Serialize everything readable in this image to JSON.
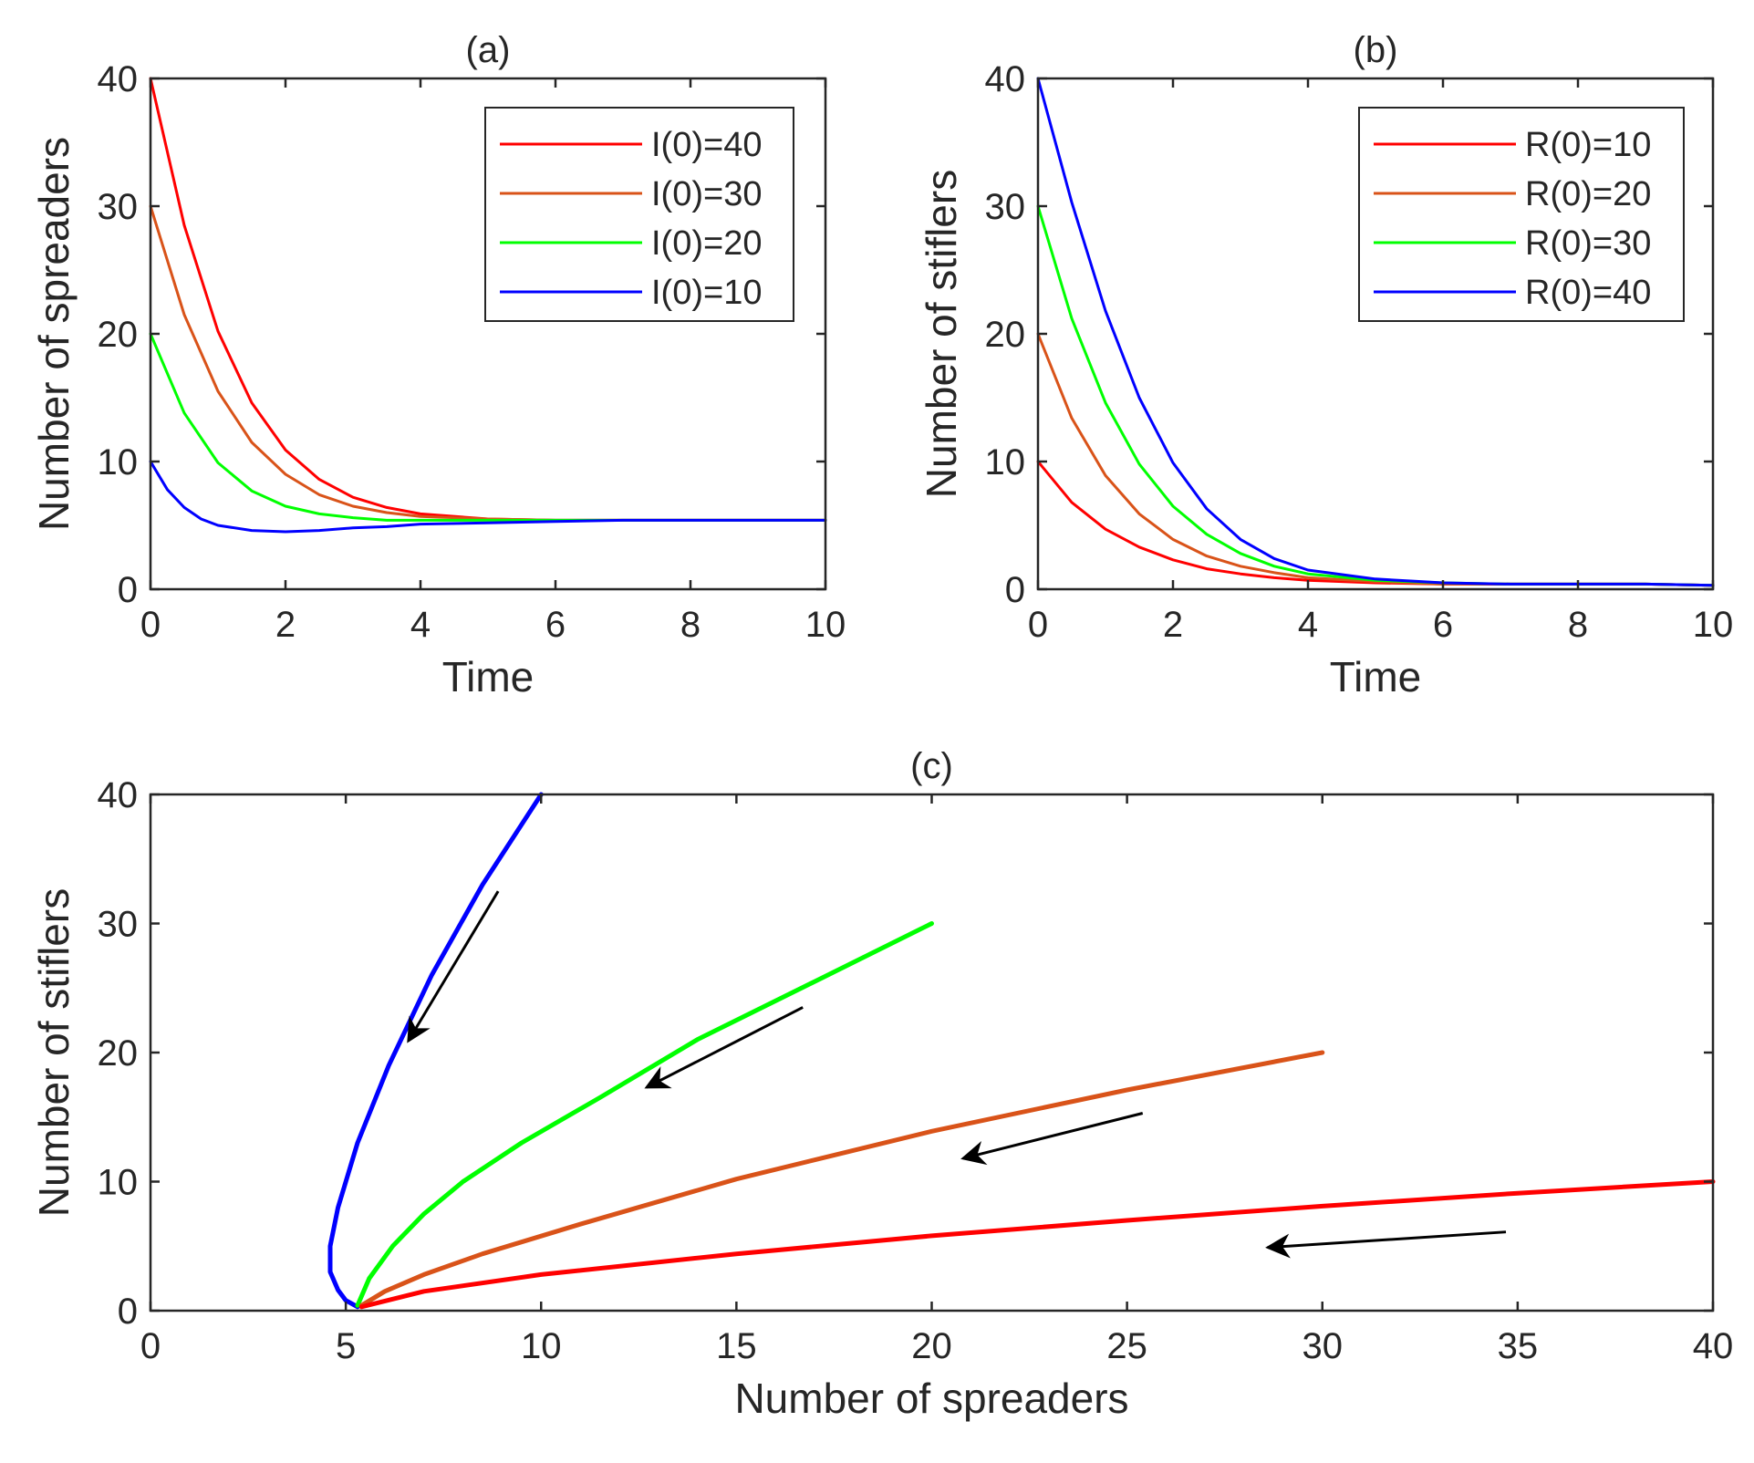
{
  "colors": {
    "red": "#ff0000",
    "orange": "#d95319",
    "green": "#00ff00",
    "blue": "#0000ff",
    "arrow": "#000000",
    "axis": "#262626"
  },
  "chart_data": [
    {
      "id": "a",
      "type": "line",
      "title": "(a)",
      "xlabel": "Time",
      "ylabel": "Number of spreaders",
      "xlim": [
        0,
        10
      ],
      "ylim": [
        0,
        40
      ],
      "xticks": [
        0,
        2,
        4,
        6,
        8,
        10
      ],
      "yticks": [
        0,
        10,
        20,
        30,
        40
      ],
      "legend_position": "top-right",
      "series": [
        {
          "name": "I(0)=40",
          "color": "#ff0000",
          "x": [
            0,
            0.5,
            1,
            1.5,
            2,
            2.5,
            3,
            3.5,
            4,
            5,
            6,
            7,
            8,
            9,
            10
          ],
          "y": [
            40,
            28.5,
            20.2,
            14.6,
            10.9,
            8.6,
            7.2,
            6.4,
            5.9,
            5.5,
            5.4,
            5.4,
            5.4,
            5.4,
            5.4
          ]
        },
        {
          "name": "I(0)=30",
          "color": "#d95319",
          "x": [
            0,
            0.5,
            1,
            1.5,
            2,
            2.5,
            3,
            3.5,
            4,
            5,
            6,
            7,
            8,
            9,
            10
          ],
          "y": [
            30,
            21.5,
            15.5,
            11.5,
            9.0,
            7.4,
            6.5,
            6.0,
            5.7,
            5.5,
            5.4,
            5.4,
            5.4,
            5.4,
            5.4
          ]
        },
        {
          "name": "I(0)=20",
          "color": "#00ff00",
          "x": [
            0,
            0.5,
            1,
            1.5,
            2,
            2.5,
            3,
            3.5,
            4,
            5,
            6,
            7,
            8,
            9,
            10
          ],
          "y": [
            20,
            13.8,
            9.9,
            7.7,
            6.5,
            5.9,
            5.6,
            5.4,
            5.4,
            5.4,
            5.4,
            5.4,
            5.4,
            5.4,
            5.4
          ]
        },
        {
          "name": "I(0)=10",
          "color": "#0000ff",
          "x": [
            0,
            0.25,
            0.5,
            0.75,
            1,
            1.5,
            2,
            2.5,
            3,
            3.5,
            4,
            5,
            6,
            7,
            8,
            9,
            10
          ],
          "y": [
            10,
            7.8,
            6.4,
            5.5,
            5.0,
            4.6,
            4.5,
            4.6,
            4.8,
            4.9,
            5.1,
            5.2,
            5.3,
            5.4,
            5.4,
            5.4,
            5.4
          ]
        }
      ]
    },
    {
      "id": "b",
      "type": "line",
      "title": "(b)",
      "xlabel": "Time",
      "ylabel": "Number of stiflers",
      "xlim": [
        0,
        10
      ],
      "ylim": [
        0,
        40
      ],
      "xticks": [
        0,
        2,
        4,
        6,
        8,
        10
      ],
      "yticks": [
        0,
        10,
        20,
        30,
        40
      ],
      "legend_position": "top-right",
      "series": [
        {
          "name": "R(0)=10",
          "color": "#ff0000",
          "x": [
            0,
            0.5,
            1,
            1.5,
            2,
            2.5,
            3,
            3.5,
            4,
            5,
            6,
            7,
            8,
            9,
            10
          ],
          "y": [
            10,
            6.8,
            4.7,
            3.3,
            2.3,
            1.6,
            1.2,
            0.9,
            0.7,
            0.5,
            0.4,
            0.4,
            0.4,
            0.4,
            0.3
          ]
        },
        {
          "name": "R(0)=20",
          "color": "#d95319",
          "x": [
            0,
            0.5,
            1,
            1.5,
            2,
            2.5,
            3,
            3.5,
            4,
            5,
            6,
            7,
            8,
            9,
            10
          ],
          "y": [
            20,
            13.4,
            8.9,
            5.9,
            3.9,
            2.6,
            1.8,
            1.3,
            0.9,
            0.6,
            0.4,
            0.4,
            0.4,
            0.4,
            0.3
          ]
        },
        {
          "name": "R(0)=30",
          "color": "#00ff00",
          "x": [
            0,
            0.5,
            1,
            1.5,
            2,
            2.5,
            3,
            3.5,
            4,
            5,
            6,
            7,
            8,
            9,
            10
          ],
          "y": [
            30,
            21.2,
            14.6,
            9.8,
            6.5,
            4.3,
            2.8,
            1.8,
            1.2,
            0.7,
            0.5,
            0.4,
            0.4,
            0.4,
            0.3
          ]
        },
        {
          "name": "R(0)=40",
          "color": "#0000ff",
          "x": [
            0,
            0.5,
            1,
            1.5,
            2,
            2.5,
            3,
            3.5,
            4,
            5,
            6,
            7,
            8,
            9,
            10
          ],
          "y": [
            40,
            30.3,
            21.8,
            15.0,
            9.9,
            6.3,
            3.9,
            2.4,
            1.5,
            0.8,
            0.5,
            0.4,
            0.4,
            0.4,
            0.3
          ]
        }
      ]
    },
    {
      "id": "c",
      "type": "line",
      "title": "(c)",
      "xlabel": "Number of spreaders",
      "ylabel": "Number of stiflers",
      "xlim": [
        0,
        40
      ],
      "ylim": [
        0,
        40
      ],
      "xticks": [
        0,
        5,
        10,
        15,
        20,
        25,
        30,
        35,
        40
      ],
      "yticks": [
        0,
        10,
        20,
        30,
        40
      ],
      "series": [
        {
          "name": "trajectory-blue",
          "color": "#0000ff",
          "x": [
            10,
            8.5,
            7.2,
            6.1,
            5.3,
            4.8,
            4.6,
            4.6,
            4.8,
            5.0,
            5.3
          ],
          "y": [
            40,
            33,
            26,
            19,
            13,
            8,
            5,
            3,
            1.6,
            0.8,
            0.3
          ]
        },
        {
          "name": "trajectory-green",
          "color": "#00ff00",
          "x": [
            20,
            17,
            14,
            11.5,
            9.5,
            8,
            7,
            6.2,
            5.6,
            5.3
          ],
          "y": [
            30,
            25.5,
            21,
            16.5,
            13,
            10,
            7.5,
            5,
            2.5,
            0.4
          ]
        },
        {
          "name": "trajectory-orange",
          "color": "#d95319",
          "x": [
            30,
            25,
            20,
            15,
            11,
            8.5,
            7,
            6,
            5.4
          ],
          "y": [
            20,
            17.1,
            13.9,
            10.2,
            6.7,
            4.4,
            2.8,
            1.5,
            0.4
          ]
        },
        {
          "name": "trajectory-red",
          "color": "#ff0000",
          "x": [
            40,
            35,
            30,
            25,
            20,
            15,
            10,
            7,
            5.4
          ],
          "y": [
            10,
            9.1,
            8.1,
            7.0,
            5.8,
            4.4,
            2.8,
            1.5,
            0.3
          ]
        }
      ],
      "arrows": [
        {
          "from": [
            8.9,
            32.5
          ],
          "to": [
            6.6,
            20.9
          ]
        },
        {
          "from": [
            16.7,
            23.5
          ],
          "to": [
            12.7,
            17.3
          ]
        },
        {
          "from": [
            25.4,
            15.3
          ],
          "to": [
            20.8,
            11.8
          ]
        },
        {
          "from": [
            34.7,
            6.1
          ],
          "to": [
            28.6,
            4.9
          ]
        }
      ]
    }
  ]
}
